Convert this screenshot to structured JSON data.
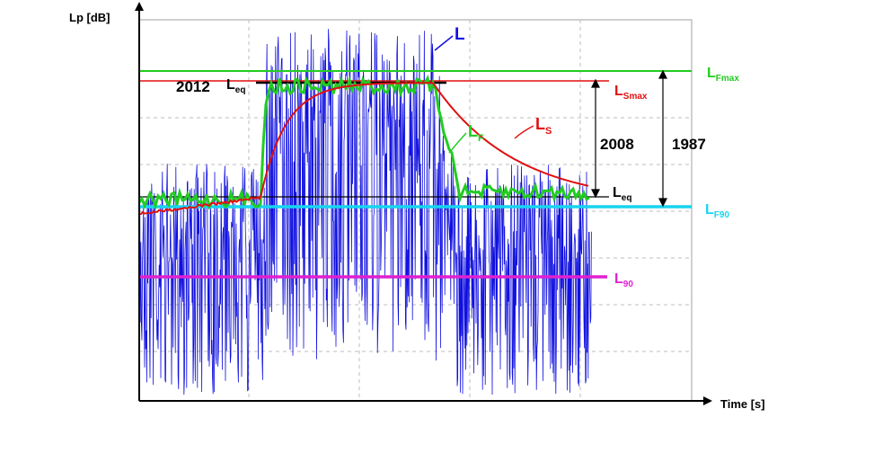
{
  "chart_data": {
    "type": "line",
    "ylabel": "Lp [dB]",
    "xlabel": "Time [s]",
    "grid": true,
    "colors": {
      "L": "#1010e0",
      "LF": "#22cc22",
      "LS": "#e01010",
      "LFmax": "#22cc22",
      "LSmax": "#e01010",
      "LF90": "#18d4f0",
      "L90": "#e020d0",
      "Leq": "#000000"
    },
    "series": [
      {
        "name": "L"
      },
      {
        "name": "L",
        "sub": "F"
      },
      {
        "name": "L",
        "sub": "S"
      }
    ],
    "levels": [
      {
        "name": "L",
        "sub": "Fmax"
      },
      {
        "name": "L",
        "sub": "Smax"
      },
      {
        "name": "L",
        "sub": "F90"
      },
      {
        "name": "L",
        "sub": "90"
      },
      {
        "name": "L",
        "sub": "eq"
      },
      {
        "name": "L",
        "sub": "eq"
      }
    ],
    "annotations": [
      "2012",
      "2008",
      "1987"
    ]
  }
}
